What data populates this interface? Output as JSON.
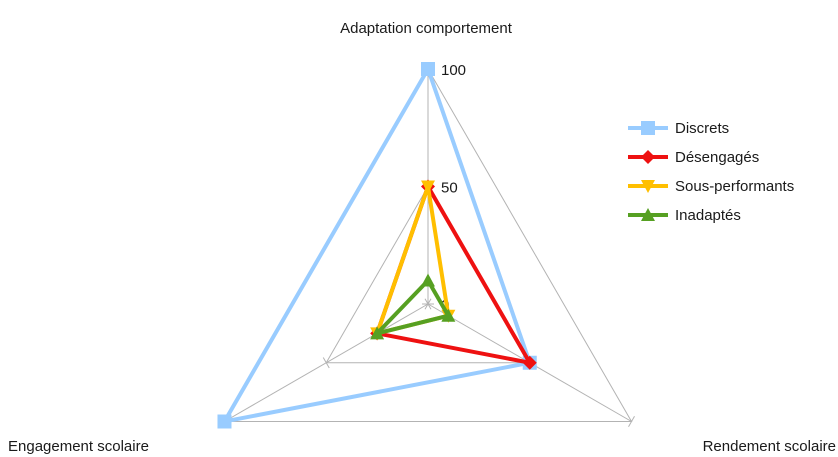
{
  "chart_data": {
    "type": "radar",
    "axes": [
      "Adaptation comportement",
      "Rendement scolaire",
      "Engagement scolaire"
    ],
    "range": [
      0,
      100
    ],
    "ticks": [
      0,
      50,
      100
    ],
    "tick_labels": [
      "0",
      "50",
      "100"
    ],
    "grid": true,
    "legend_position": "right",
    "series": [
      {
        "name": "Discrets",
        "values": [
          100,
          50,
          100
        ],
        "color": "#99ccff",
        "marker": "square"
      },
      {
        "name": "Désengagés",
        "values": [
          50,
          50,
          25
        ],
        "color": "#ee1111",
        "marker": "diamond"
      },
      {
        "name": "Sous-performants",
        "values": [
          50,
          10,
          25
        ],
        "color": "#ffbf00",
        "marker": "triangle-down"
      },
      {
        "name": "Inadaptés",
        "values": [
          10,
          10,
          25
        ],
        "color": "#56a022",
        "marker": "triangle-up"
      }
    ]
  }
}
